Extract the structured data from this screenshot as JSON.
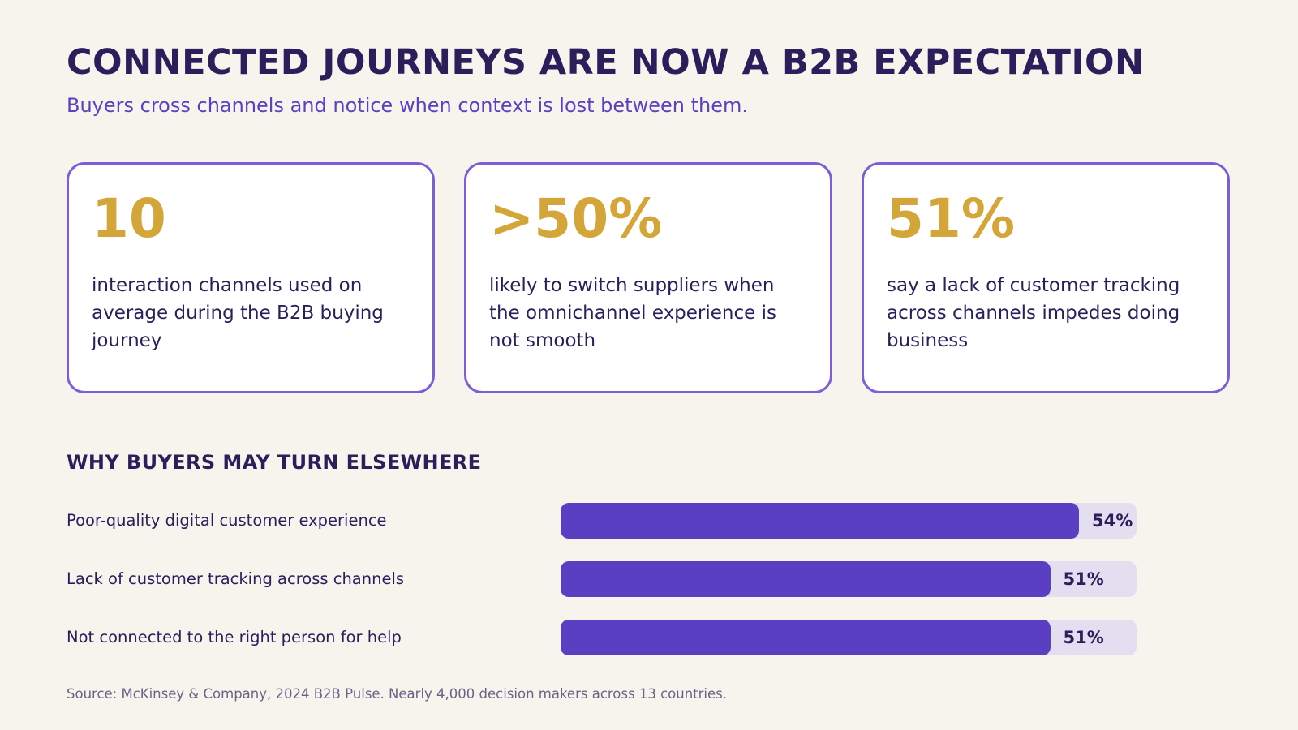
{
  "header": {
    "title": "CONNECTED JOURNEYS ARE NOW A B2B EXPECTATION",
    "subtitle": "Buyers cross channels and notice when context is lost between them."
  },
  "stats": [
    {
      "value": "10",
      "description": "interaction channels used on average during the B2B buying journey"
    },
    {
      "value": ">50%",
      "description": "likely to switch suppliers when the omnichannel experience is not smooth"
    },
    {
      "value": "51%",
      "description": "say a lack of customer tracking across channels impedes doing business"
    }
  ],
  "chart_data": {
    "type": "bar",
    "orientation": "horizontal",
    "title": "WHY BUYERS MAY TURN ELSEWHERE",
    "categories": [
      "Poor-quality digital customer experience",
      "Lack of customer tracking across channels",
      "Not connected to the right person for help"
    ],
    "values": [
      54,
      51,
      51
    ],
    "value_labels": [
      "54%",
      "51%",
      "51%"
    ],
    "xlim": [
      0,
      60
    ],
    "grid": false,
    "colors": {
      "bar": "#5b3fc2",
      "track": "#e3dff0"
    }
  },
  "footer": {
    "source": "Source: McKinsey & Company, 2024 B2B Pulse. Nearly 4,000 decision makers across 13 countries."
  },
  "colors": {
    "background": "#f7f4ee",
    "navy": "#2a1f5a",
    "purple": "#5b41c0",
    "gold": "#d4a63a",
    "card_border": "#7a5fd6"
  }
}
